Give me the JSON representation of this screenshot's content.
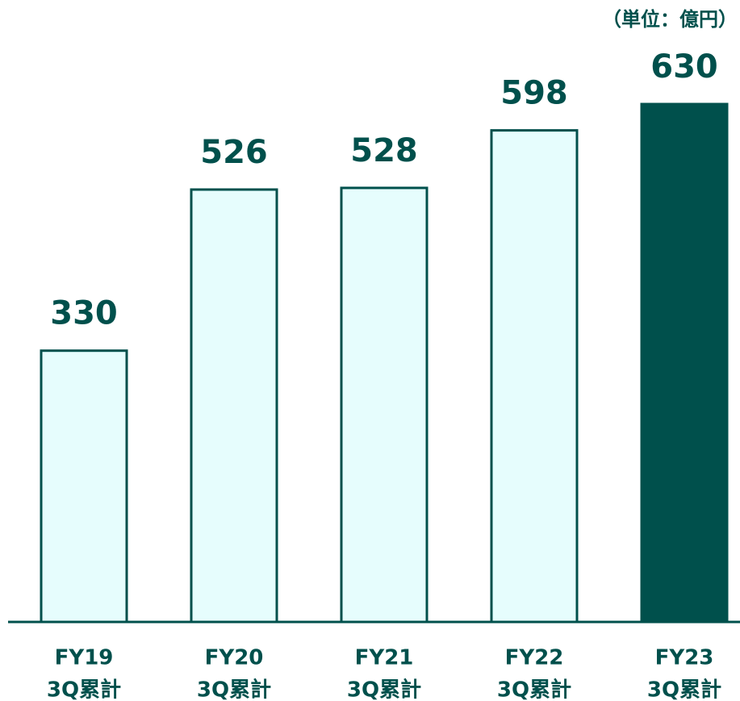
{
  "chart_data": {
    "type": "bar",
    "subtitle": "（単位：億円）",
    "categories": [
      [
        "FY19",
        "3Q累計"
      ],
      [
        "FY20",
        "3Q累計"
      ],
      [
        "FY21",
        "3Q累計"
      ],
      [
        "FY22",
        "3Q累計"
      ],
      [
        "FY23",
        "3Q累計"
      ]
    ],
    "values": [
      330,
      526,
      528,
      598,
      630
    ],
    "colors": [
      "#e6fdfd",
      "#e6fdfd",
      "#e6fdfd",
      "#e6fdfd",
      "#00504c"
    ],
    "edge_color": "#00504c"
  }
}
